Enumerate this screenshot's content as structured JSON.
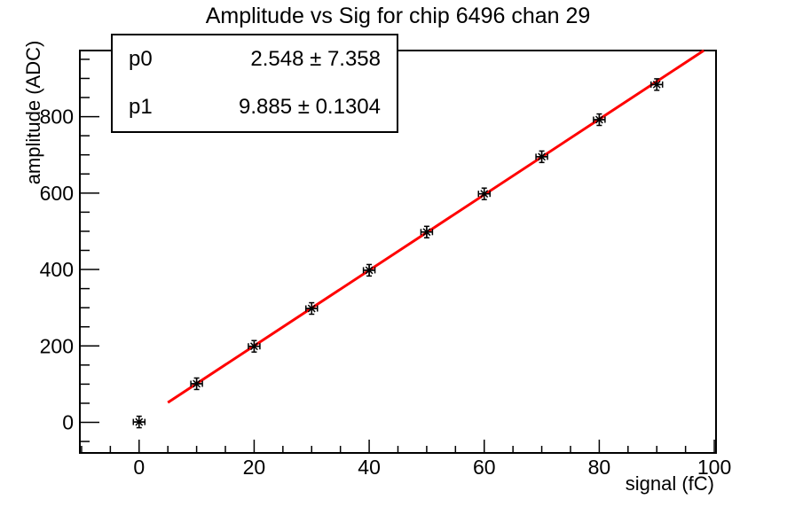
{
  "title": "Amplitude vs Sig for chip 6496 chan 29",
  "stats_box": {
    "rows": [
      {
        "param": "p0",
        "value": "2.548 ± 7.358"
      },
      {
        "param": "p1",
        "value": "9.885 ± 0.1304"
      }
    ]
  },
  "axes": {
    "x_title": "signal (fC)",
    "y_title": "amplitude (ADC)"
  },
  "colors": {
    "fit_line": "#ff0000",
    "marker": "#000000",
    "axis": "#000000",
    "background": "#ffffff"
  },
  "chart_data": {
    "type": "scatter",
    "title": "Amplitude vs Sig for chip 6496 chan 29",
    "xlabel": "signal (fC)",
    "ylabel": "amplitude (ADC)",
    "x": [
      0,
      10,
      20,
      30,
      40,
      50,
      60,
      70,
      80,
      90
    ],
    "y": [
      1,
      101,
      199,
      298,
      398,
      498,
      598,
      695,
      792,
      884
    ],
    "x_err": 1,
    "y_err": 15,
    "xlim": [
      -10.3,
      100.3
    ],
    "ylim": [
      -80,
      973
    ],
    "x_major_ticks": [
      0,
      20,
      40,
      60,
      80,
      100
    ],
    "y_major_ticks": [
      0,
      200,
      400,
      600,
      800
    ],
    "x_minor_step": 5,
    "y_minor_step": 50,
    "grid": false,
    "legend": "none",
    "marker": "asterisk-with-error-bars",
    "fit": {
      "type": "linear",
      "p0": 2.548,
      "p1": 9.885,
      "x_start": 5,
      "note": "y = p0 + p1*x, drawn clipped at frame top"
    }
  }
}
